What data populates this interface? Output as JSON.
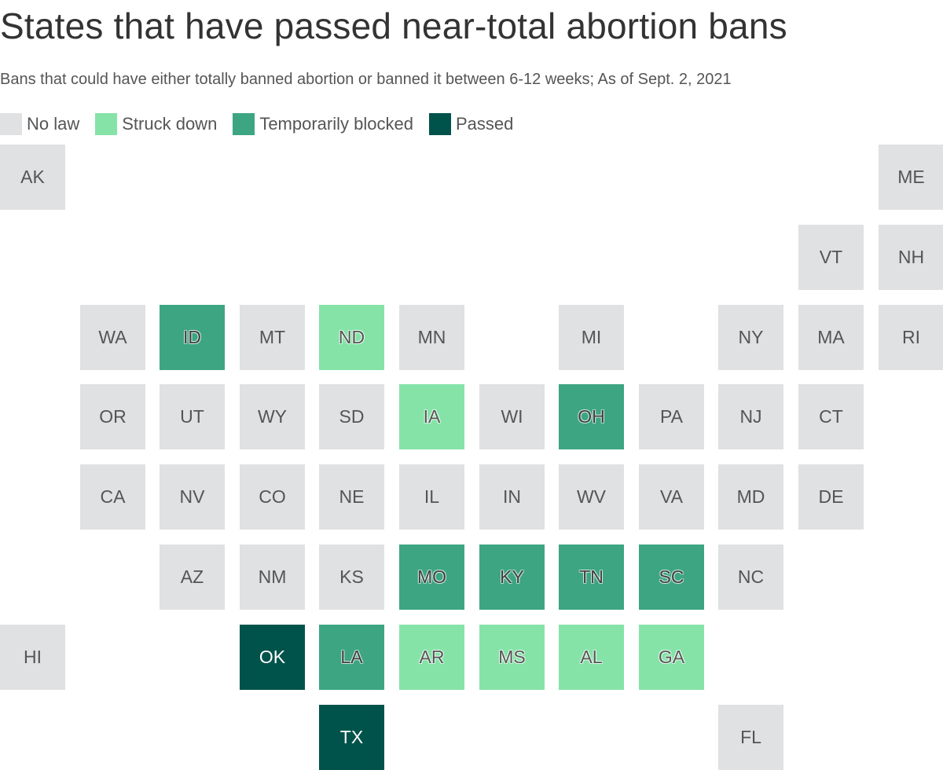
{
  "title": "States that have passed near-total abortion bans",
  "subtitle": "Bans that could have either totally banned abortion or banned it between 6-12 weeks; As of Sept. 2, 2021",
  "legend": [
    {
      "key": "none",
      "label": "No law"
    },
    {
      "key": "struck",
      "label": "Struck down"
    },
    {
      "key": "blocked",
      "label": "Temporarily blocked"
    },
    {
      "key": "passed",
      "label": "Passed"
    }
  ],
  "colors": {
    "none": "#e0e1e2",
    "struck": "#86e3a8",
    "blocked": "#3da582",
    "passed": "#00534a"
  },
  "states": [
    {
      "abbr": "AK",
      "status": "none",
      "row": 0,
      "col": 0
    },
    {
      "abbr": "ME",
      "status": "none",
      "row": 0,
      "col": 11
    },
    {
      "abbr": "VT",
      "status": "none",
      "row": 1,
      "col": 10
    },
    {
      "abbr": "NH",
      "status": "none",
      "row": 1,
      "col": 11
    },
    {
      "abbr": "WA",
      "status": "none",
      "row": 2,
      "col": 1
    },
    {
      "abbr": "ID",
      "status": "blocked",
      "row": 2,
      "col": 2
    },
    {
      "abbr": "MT",
      "status": "none",
      "row": 2,
      "col": 3
    },
    {
      "abbr": "ND",
      "status": "struck",
      "row": 2,
      "col": 4
    },
    {
      "abbr": "MN",
      "status": "none",
      "row": 2,
      "col": 5
    },
    {
      "abbr": "MI",
      "status": "none",
      "row": 2,
      "col": 7
    },
    {
      "abbr": "NY",
      "status": "none",
      "row": 2,
      "col": 9
    },
    {
      "abbr": "MA",
      "status": "none",
      "row": 2,
      "col": 10
    },
    {
      "abbr": "RI",
      "status": "none",
      "row": 2,
      "col": 11
    },
    {
      "abbr": "OR",
      "status": "none",
      "row": 3,
      "col": 1
    },
    {
      "abbr": "UT",
      "status": "none",
      "row": 3,
      "col": 2
    },
    {
      "abbr": "WY",
      "status": "none",
      "row": 3,
      "col": 3
    },
    {
      "abbr": "SD",
      "status": "none",
      "row": 3,
      "col": 4
    },
    {
      "abbr": "IA",
      "status": "struck",
      "row": 3,
      "col": 5
    },
    {
      "abbr": "WI",
      "status": "none",
      "row": 3,
      "col": 6
    },
    {
      "abbr": "OH",
      "status": "blocked",
      "row": 3,
      "col": 7
    },
    {
      "abbr": "PA",
      "status": "none",
      "row": 3,
      "col": 8
    },
    {
      "abbr": "NJ",
      "status": "none",
      "row": 3,
      "col": 9
    },
    {
      "abbr": "CT",
      "status": "none",
      "row": 3,
      "col": 10
    },
    {
      "abbr": "CA",
      "status": "none",
      "row": 4,
      "col": 1
    },
    {
      "abbr": "NV",
      "status": "none",
      "row": 4,
      "col": 2
    },
    {
      "abbr": "CO",
      "status": "none",
      "row": 4,
      "col": 3
    },
    {
      "abbr": "NE",
      "status": "none",
      "row": 4,
      "col": 4
    },
    {
      "abbr": "IL",
      "status": "none",
      "row": 4,
      "col": 5
    },
    {
      "abbr": "IN",
      "status": "none",
      "row": 4,
      "col": 6
    },
    {
      "abbr": "WV",
      "status": "none",
      "row": 4,
      "col": 7
    },
    {
      "abbr": "VA",
      "status": "none",
      "row": 4,
      "col": 8
    },
    {
      "abbr": "MD",
      "status": "none",
      "row": 4,
      "col": 9
    },
    {
      "abbr": "DE",
      "status": "none",
      "row": 4,
      "col": 10
    },
    {
      "abbr": "AZ",
      "status": "none",
      "row": 5,
      "col": 2
    },
    {
      "abbr": "NM",
      "status": "none",
      "row": 5,
      "col": 3
    },
    {
      "abbr": "KS",
      "status": "none",
      "row": 5,
      "col": 4
    },
    {
      "abbr": "MO",
      "status": "blocked",
      "row": 5,
      "col": 5
    },
    {
      "abbr": "KY",
      "status": "blocked",
      "row": 5,
      "col": 6
    },
    {
      "abbr": "TN",
      "status": "blocked",
      "row": 5,
      "col": 7
    },
    {
      "abbr": "SC",
      "status": "blocked",
      "row": 5,
      "col": 8
    },
    {
      "abbr": "NC",
      "status": "none",
      "row": 5,
      "col": 9
    },
    {
      "abbr": "HI",
      "status": "none",
      "row": 6,
      "col": 0
    },
    {
      "abbr": "OK",
      "status": "passed",
      "row": 6,
      "col": 3
    },
    {
      "abbr": "LA",
      "status": "blocked",
      "row": 6,
      "col": 4
    },
    {
      "abbr": "AR",
      "status": "struck",
      "row": 6,
      "col": 5
    },
    {
      "abbr": "MS",
      "status": "struck",
      "row": 6,
      "col": 6
    },
    {
      "abbr": "AL",
      "status": "struck",
      "row": 6,
      "col": 7
    },
    {
      "abbr": "GA",
      "status": "struck",
      "row": 6,
      "col": 8
    },
    {
      "abbr": "TX",
      "status": "passed",
      "row": 7,
      "col": 4
    },
    {
      "abbr": "FL",
      "status": "none",
      "row": 7,
      "col": 9
    }
  ]
}
